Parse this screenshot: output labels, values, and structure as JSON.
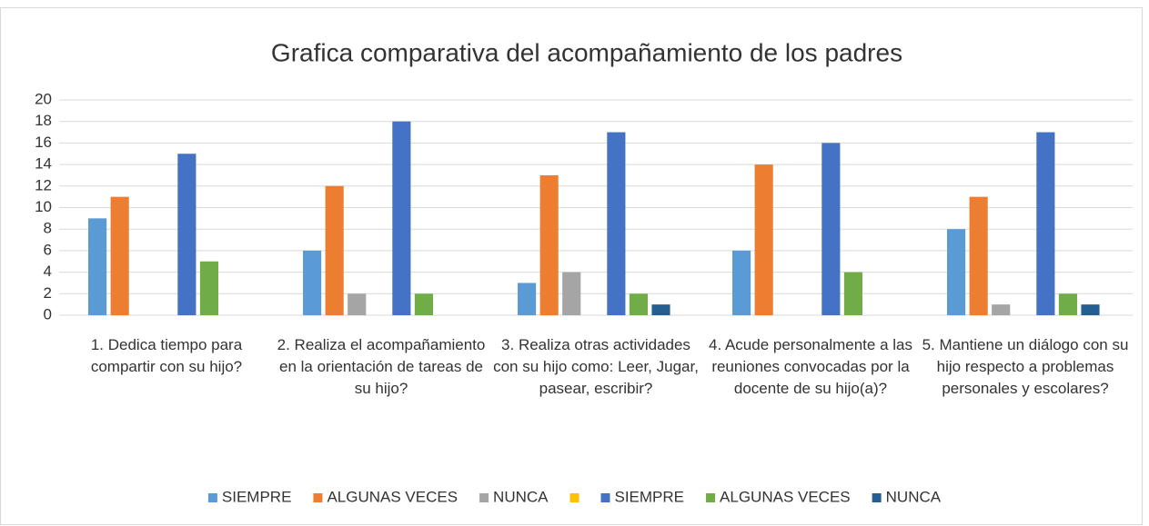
{
  "chart_data": {
    "type": "bar",
    "title": "Grafica comparativa del acompañamiento de los padres",
    "categories": [
      "1. Dedica tiempo para compartir con su hijo?",
      "2. Realiza el acompañamiento en la orientación de tareas de su hijo?",
      "3. Realiza otras actividades con su hijo como: Leer, Jugar, pasear, escribir?",
      "4. Acude personalmente a las reuniones convocadas por la docente de su hijo(a)?",
      "5. Mantiene un diálogo con su hijo respecto a problemas personales y escolares?"
    ],
    "series": [
      {
        "name": "SIEMPRE",
        "color": "#5b9bd5",
        "values": [
          9,
          6,
          3,
          6,
          8
        ]
      },
      {
        "name": "ALGUNAS VECES",
        "color": "#ed7d31",
        "values": [
          11,
          12,
          13,
          14,
          11
        ]
      },
      {
        "name": "NUNCA",
        "color": "#a5a5a5",
        "values": [
          0,
          2,
          4,
          0,
          1
        ]
      },
      {
        "color": "#ffc000",
        "values": [
          0,
          0,
          0,
          0,
          0
        ]
      },
      {
        "name": "SIEMPRE",
        "color": "#4472c4",
        "values": [
          15,
          18,
          17,
          16,
          17
        ]
      },
      {
        "name": "ALGUNAS VECES",
        "color": "#70ad47",
        "values": [
          5,
          2,
          2,
          4,
          2
        ]
      },
      {
        "name": "NUNCA",
        "color": "#255e91",
        "values": [
          0,
          0,
          1,
          0,
          1
        ]
      }
    ],
    "ylim": [
      0,
      20
    ],
    "yticks": [
      0,
      2,
      4,
      6,
      8,
      10,
      12,
      14,
      16,
      18,
      20
    ],
    "grid": true,
    "legend": "bottom"
  }
}
